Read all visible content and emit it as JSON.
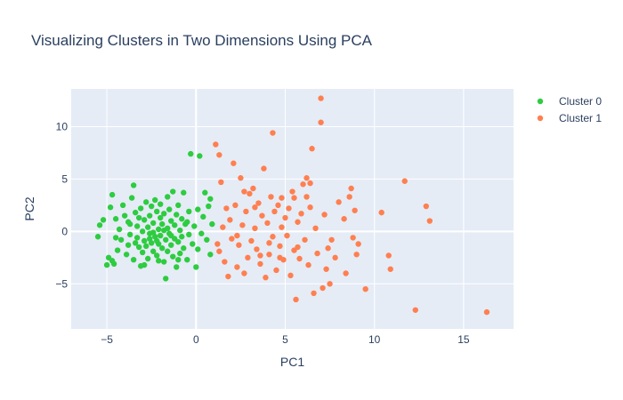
{
  "chart_data": {
    "type": "scatter",
    "title": "Visualizing Clusters in Two Dimensions Using PCA",
    "xlabel": "PC1",
    "ylabel": "PC2",
    "xlim": [
      -7,
      17.8
    ],
    "ylim": [
      -9.3,
      13.6
    ],
    "xticks": [
      -5,
      0,
      5,
      10,
      15
    ],
    "yticks": [
      -5,
      0,
      5,
      10
    ],
    "grid": true,
    "legend_position": "top-right",
    "background": "#e5ecf6",
    "series": [
      {
        "name": "Cluster 0",
        "color": "#2ecc40",
        "points": [
          [
            -5.5,
            -0.5
          ],
          [
            -5.4,
            0.6
          ],
          [
            -5.2,
            1.1
          ],
          [
            -5,
            -3.2
          ],
          [
            -4.9,
            -2.5
          ],
          [
            -4.8,
            2.3
          ],
          [
            -4.7,
            3.5
          ],
          [
            -4.7,
            -2.8
          ],
          [
            -4.6,
            -3.1
          ],
          [
            -4.5,
            1.2
          ],
          [
            -4.4,
            -1.8
          ],
          [
            -4.3,
            0.2
          ],
          [
            -4.2,
            -0.8
          ],
          [
            -4.1,
            2.5
          ],
          [
            -4,
            1.5
          ],
          [
            -3.9,
            -2.2
          ],
          [
            -3.8,
            0.9
          ],
          [
            -3.8,
            -1.3
          ],
          [
            -3.7,
            -0.3
          ],
          [
            -3.6,
            3.2
          ],
          [
            -3.5,
            4.4
          ],
          [
            -3.5,
            -2.7
          ],
          [
            -3.4,
            1.8
          ],
          [
            -3.3,
            -0.6
          ],
          [
            -3.3,
            0.5
          ],
          [
            -3.2,
            -1.5
          ],
          [
            -3.1,
            2.2
          ],
          [
            -3.1,
            -3.3
          ],
          [
            -3,
            0
          ],
          [
            -3,
            -2
          ],
          [
            -2.9,
            1.1
          ],
          [
            -2.9,
            -0.9
          ],
          [
            -2.8,
            2.8
          ],
          [
            -2.8,
            -1.4
          ],
          [
            -2.7,
            0.4
          ],
          [
            -2.7,
            -2.6
          ],
          [
            -2.6,
            1.5
          ],
          [
            -2.6,
            -0.2
          ],
          [
            -2.5,
            2.4
          ],
          [
            -2.5,
            -1.1
          ],
          [
            -2.4,
            0.8
          ],
          [
            -2.4,
            -1.9
          ],
          [
            -2.3,
            3
          ],
          [
            -2.3,
            -0.5
          ],
          [
            -2.2,
            1.9
          ],
          [
            -2.2,
            -2.3
          ],
          [
            -2.1,
            0.2
          ],
          [
            -2.1,
            -1.2
          ],
          [
            -2,
            1.3
          ],
          [
            -2,
            -0.4
          ],
          [
            -2,
            2.6
          ],
          [
            -1.9,
            -1.6
          ],
          [
            -1.9,
            0.7
          ],
          [
            -1.8,
            -2.9
          ],
          [
            -1.8,
            1.7
          ],
          [
            -1.7,
            -4.5
          ],
          [
            -1.7,
            -0.8
          ],
          [
            -1.6,
            0.3
          ],
          [
            -1.6,
            -1.9
          ],
          [
            -1.5,
            2.1
          ],
          [
            -1.5,
            -0.2
          ],
          [
            -1.4,
            1
          ],
          [
            -1.4,
            -1.3
          ],
          [
            -1.3,
            3.8
          ],
          [
            -1.3,
            -2.4
          ],
          [
            -1.2,
            0.6
          ],
          [
            -1.2,
            -0.7
          ],
          [
            -1.1,
            1.6
          ],
          [
            -1.1,
            -3.4
          ],
          [
            -1,
            2.5
          ],
          [
            -1,
            -1
          ],
          [
            -0.9,
            0.1
          ],
          [
            -0.9,
            -2.1
          ],
          [
            -0.8,
            1.2
          ],
          [
            -0.8,
            -0.5
          ],
          [
            -0.7,
            3.7
          ],
          [
            -0.7,
            -1.6
          ],
          [
            -0.6,
            0.7
          ],
          [
            -0.5,
            -2.7
          ],
          [
            -0.4,
            1.9
          ],
          [
            -0.4,
            -0.3
          ],
          [
            -0.3,
            7.4
          ],
          [
            -0.2,
            -1.2
          ],
          [
            -0.1,
            0.5
          ],
          [
            0,
            -3.4
          ],
          [
            0.1,
            2.1
          ],
          [
            0.1,
            -1.7
          ],
          [
            0.2,
            7.2
          ],
          [
            0.3,
            -0.2
          ],
          [
            0.4,
            1.4
          ],
          [
            0.5,
            3.7
          ],
          [
            0.6,
            -0.8
          ],
          [
            0.7,
            2.4
          ],
          [
            0.8,
            -2.2
          ],
          [
            0.9,
            0.7
          ],
          [
            -2.6,
            -0.7
          ],
          [
            -3.4,
            -1.1
          ],
          [
            -1.8,
            0.1
          ],
          [
            -2.4,
            -0.1
          ],
          [
            -1.4,
            -0.4
          ],
          [
            -3.7,
            0.7
          ],
          [
            -2.1,
            -2.8
          ],
          [
            -0.5,
            0.9
          ],
          [
            -4.5,
            -0.6
          ],
          [
            -1.6,
            3.3
          ],
          [
            -2.9,
            -3.2
          ],
          [
            -1,
            -2.7
          ],
          [
            0.8,
            3.1
          ],
          [
            -3.2,
            1.3
          ],
          [
            -2.2,
            -0.9
          ]
        ]
      },
      {
        "name": "Cluster 1",
        "color": "#ff7f50",
        "points": [
          [
            1.1,
            8.3
          ],
          [
            1.3,
            7.3
          ],
          [
            1.4,
            4.7
          ],
          [
            1.3,
            -1.9
          ],
          [
            1.5,
            0.4
          ],
          [
            1.6,
            -2.9
          ],
          [
            1.7,
            2.2
          ],
          [
            1.8,
            -4.3
          ],
          [
            1.9,
            1.1
          ],
          [
            2,
            -0.7
          ],
          [
            2.1,
            6.5
          ],
          [
            2.2,
            2.5
          ],
          [
            2.3,
            -3.4
          ],
          [
            2.4,
            -1.3
          ],
          [
            2.5,
            5.1
          ],
          [
            2.6,
            0.6
          ],
          [
            2.7,
            -4
          ],
          [
            2.8,
            1.9
          ],
          [
            2.9,
            -2.5
          ],
          [
            3,
            3.6
          ],
          [
            3.1,
            -0.9
          ],
          [
            3.2,
            4.1
          ],
          [
            3.3,
            0.3
          ],
          [
            3.4,
            -1.7
          ],
          [
            3.5,
            2.7
          ],
          [
            3.6,
            -3.1
          ],
          [
            3.7,
            1.5
          ],
          [
            3.8,
            6
          ],
          [
            3.9,
            -4.4
          ],
          [
            4,
            0.8
          ],
          [
            4.1,
            -2.2
          ],
          [
            4.2,
            3.3
          ],
          [
            4.3,
            -0.5
          ],
          [
            4.4,
            1.9
          ],
          [
            4.5,
            -3.7
          ],
          [
            4.6,
            2.5
          ],
          [
            4.7,
            -1.4
          ],
          [
            4.8,
            0.4
          ],
          [
            4.8,
            3.2
          ],
          [
            4.9,
            -2.7
          ],
          [
            5,
            1.3
          ],
          [
            5.1,
            -0.4
          ],
          [
            5.2,
            2.2
          ],
          [
            5.3,
            -4.2
          ],
          [
            5.4,
            3.8
          ],
          [
            5.5,
            -1.8
          ],
          [
            5.6,
            -6.5
          ],
          [
            5.7,
            0.9
          ],
          [
            5.8,
            -2.6
          ],
          [
            5.9,
            1.7
          ],
          [
            6,
            4.5
          ],
          [
            6.1,
            -0.8
          ],
          [
            6.2,
            5.1
          ],
          [
            6.3,
            -3.2
          ],
          [
            6.4,
            2.3
          ],
          [
            6.5,
            7.9
          ],
          [
            6.6,
            -5.9
          ],
          [
            6.7,
            0.3
          ],
          [
            6.8,
            -2.1
          ],
          [
            7,
            12.7
          ],
          [
            7,
            10.4
          ],
          [
            7.1,
            -5.4
          ],
          [
            7.2,
            1.6
          ],
          [
            7.3,
            -3.6
          ],
          [
            7.5,
            -5
          ],
          [
            7.6,
            -0.8
          ],
          [
            7.8,
            -2.5
          ],
          [
            8,
            2.8
          ],
          [
            8.3,
            1.2
          ],
          [
            8.4,
            -4
          ],
          [
            8.6,
            3.3
          ],
          [
            8.8,
            -0.6
          ],
          [
            8.9,
            2
          ],
          [
            9,
            -2.2
          ],
          [
            9.5,
            -5.5
          ],
          [
            10.4,
            1.8
          ],
          [
            10.8,
            -2.3
          ],
          [
            10.9,
            -3.6
          ],
          [
            11.7,
            4.8
          ],
          [
            12.3,
            -7.5
          ],
          [
            12.9,
            2.4
          ],
          [
            13.1,
            1
          ],
          [
            16.3,
            -7.7
          ],
          [
            4.3,
            9.4
          ],
          [
            6.4,
            4.6
          ],
          [
            8.7,
            4.1
          ],
          [
            9.1,
            -1.2
          ],
          [
            5.5,
            3.2
          ],
          [
            3.6,
            -2.3
          ],
          [
            2.3,
            -0.4
          ],
          [
            4.1,
            -1.1
          ],
          [
            5.7,
            -1.5
          ],
          [
            3.3,
            2.3
          ],
          [
            6.2,
            3.3
          ],
          [
            7.4,
            -1.6
          ],
          [
            2.7,
            3.8
          ],
          [
            4.7,
            -2.5
          ],
          [
            1.2,
            -1.2
          ]
        ]
      }
    ]
  }
}
